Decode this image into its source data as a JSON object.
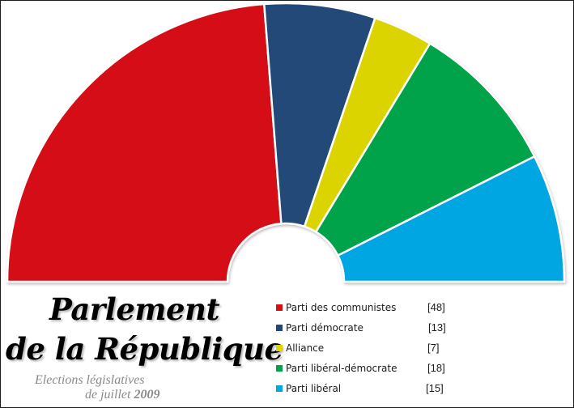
{
  "chart_data": {
    "type": "pie",
    "subtype": "parliament-hemicycle",
    "title_line_1": "Parlement",
    "title_line_2": "de la République",
    "subtitle_line_1": "Elections législatives",
    "subtitle_line_2_prefix": "de juillet ",
    "subtitle_line_2_year": "2009",
    "legend_placement": "bottom-right",
    "series": [
      {
        "name": "Parti des communistes",
        "value": 48,
        "label": "[48]",
        "color": "#d50f12"
      },
      {
        "name": "Parti démocrate",
        "value": 13,
        "label": "[13]",
        "color": "#234878"
      },
      {
        "name": "Alliance",
        "value": 7,
        "label": "[7]",
        "color": "#dcd400"
      },
      {
        "name": "Parti libéral-démocrate",
        "value": 18,
        "label": "[18]",
        "color": "#00a34a"
      },
      {
        "name": "Parti libéral",
        "value": 15,
        "label": "[15]",
        "color": "#00a6e2"
      }
    ]
  }
}
